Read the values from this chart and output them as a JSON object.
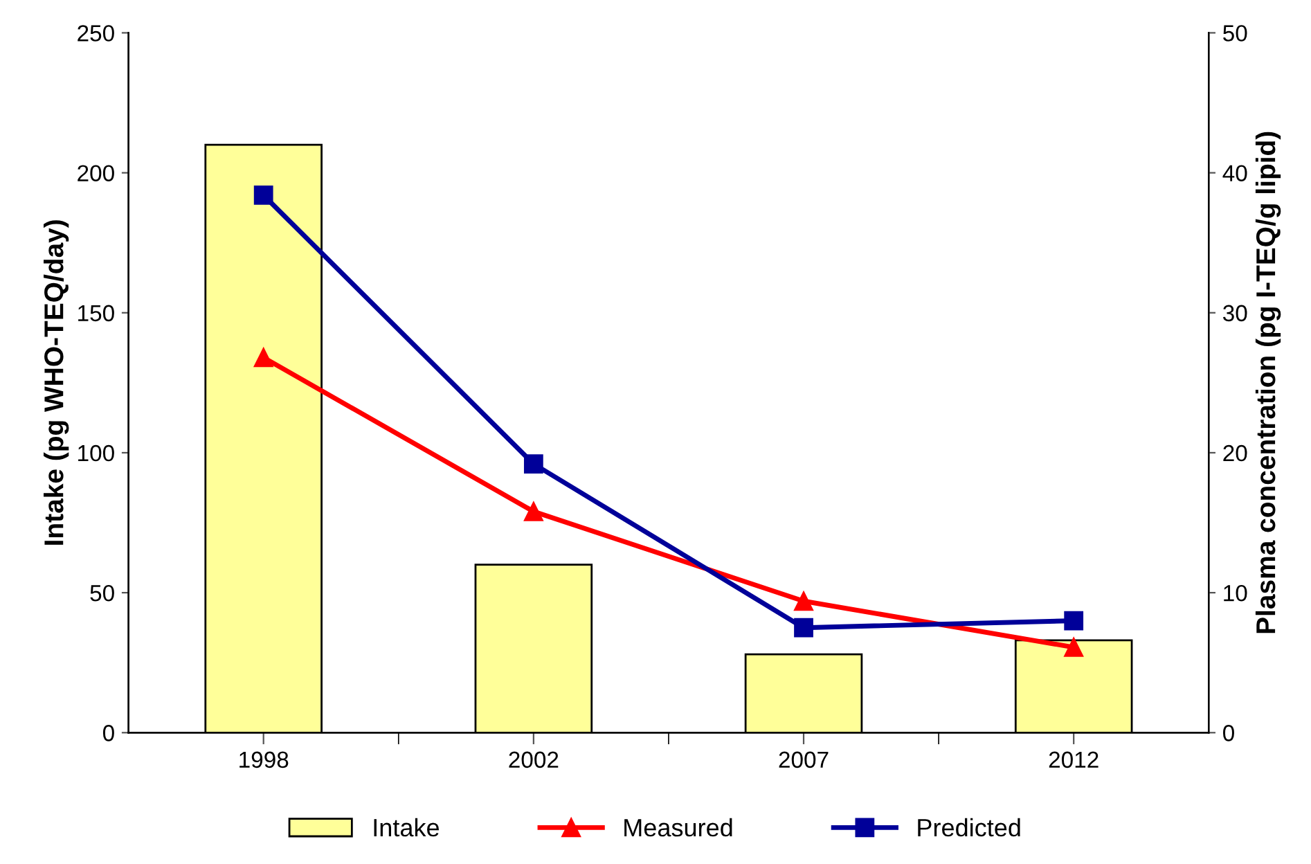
{
  "chart_data": {
    "type": "bar",
    "categories": [
      "1998",
      "2002",
      "2007",
      "2012"
    ],
    "ylabel": "Intake (pg WHO-TEQ/day)",
    "y2label": "Plasma concentration (pg I-TEQ/g lipid)",
    "series": [
      {
        "name": "Intake",
        "color": "#ffff99",
        "values": [
          210,
          60,
          28,
          33
        ]
      },
      {
        "name": "Measured",
        "type": "line",
        "axis": "y2",
        "color": "#ff0000",
        "marker": "triangle",
        "values": [
          26.8,
          15.8,
          9.4,
          6.1
        ]
      },
      {
        "name": "Predicted",
        "type": "line",
        "axis": "y2",
        "color": "#000099",
        "marker": "square",
        "values": [
          38.4,
          19.2,
          7.5,
          8.0
        ]
      }
    ],
    "ylim": [
      0,
      250
    ],
    "yticks": [
      0,
      50,
      100,
      150,
      200,
      250
    ],
    "y2lim": [
      0,
      50
    ],
    "y2ticks": [
      0,
      10,
      20,
      30,
      40,
      50
    ],
    "grid": false,
    "legend": "bottom"
  }
}
